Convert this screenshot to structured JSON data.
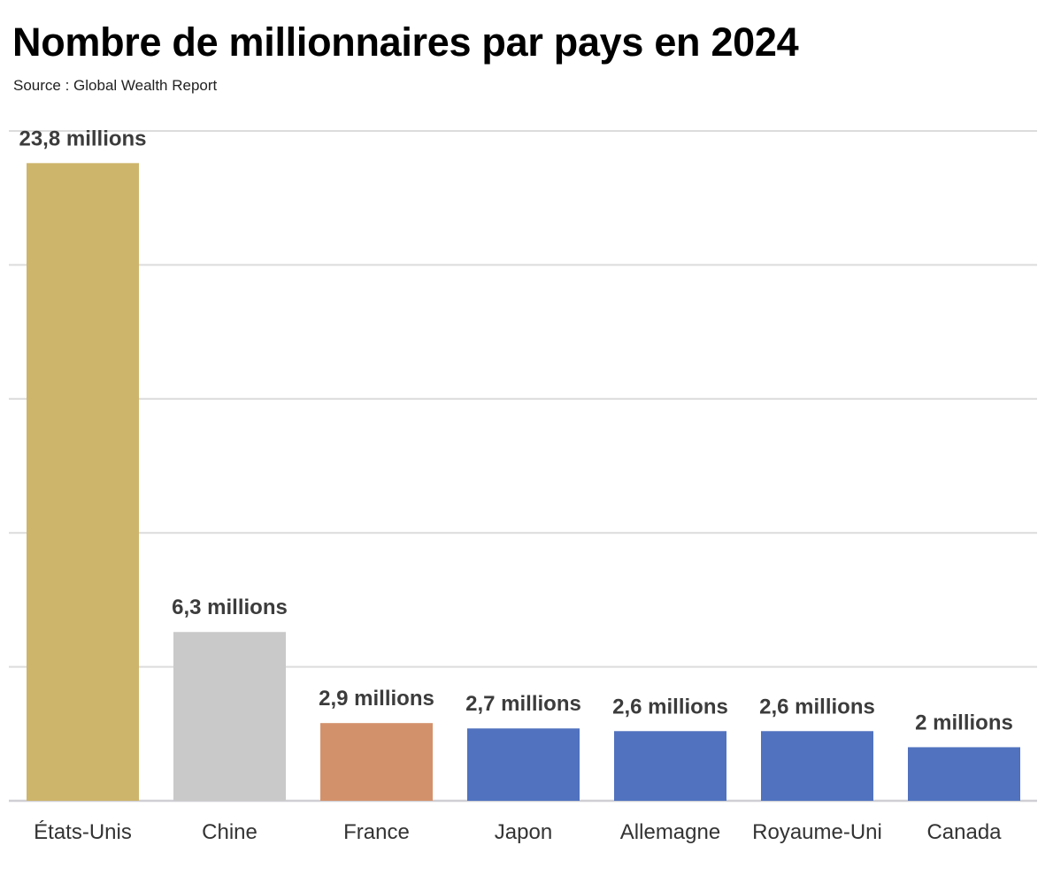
{
  "chart_data": {
    "type": "bar",
    "title": "Nombre de millionnaires par pays en 2024",
    "subtitle": "Source : Global Wealth Report",
    "categories": [
      "États-Unis",
      "Chine",
      "France",
      "Japon",
      "Allemagne",
      "Royaume-Uni",
      "Canada"
    ],
    "values": [
      23.8,
      6.3,
      2.9,
      2.7,
      2.6,
      2.6,
      2.0
    ],
    "unit": "millions",
    "data_labels": [
      "23,8 millions",
      "6,3 millions",
      "2,9 millions",
      "2,7 millions",
      "2,6 millions",
      "2,6 millions",
      "2 millions"
    ],
    "colors": [
      "#CDB56B",
      "#C9C9C9",
      "#D3916B",
      "#5072BF",
      "#5072BF",
      "#5072BF",
      "#5072BF"
    ],
    "ylim": [
      0,
      25
    ],
    "grid": true,
    "gridline_step": 5,
    "xlabel": "",
    "ylabel": ""
  }
}
